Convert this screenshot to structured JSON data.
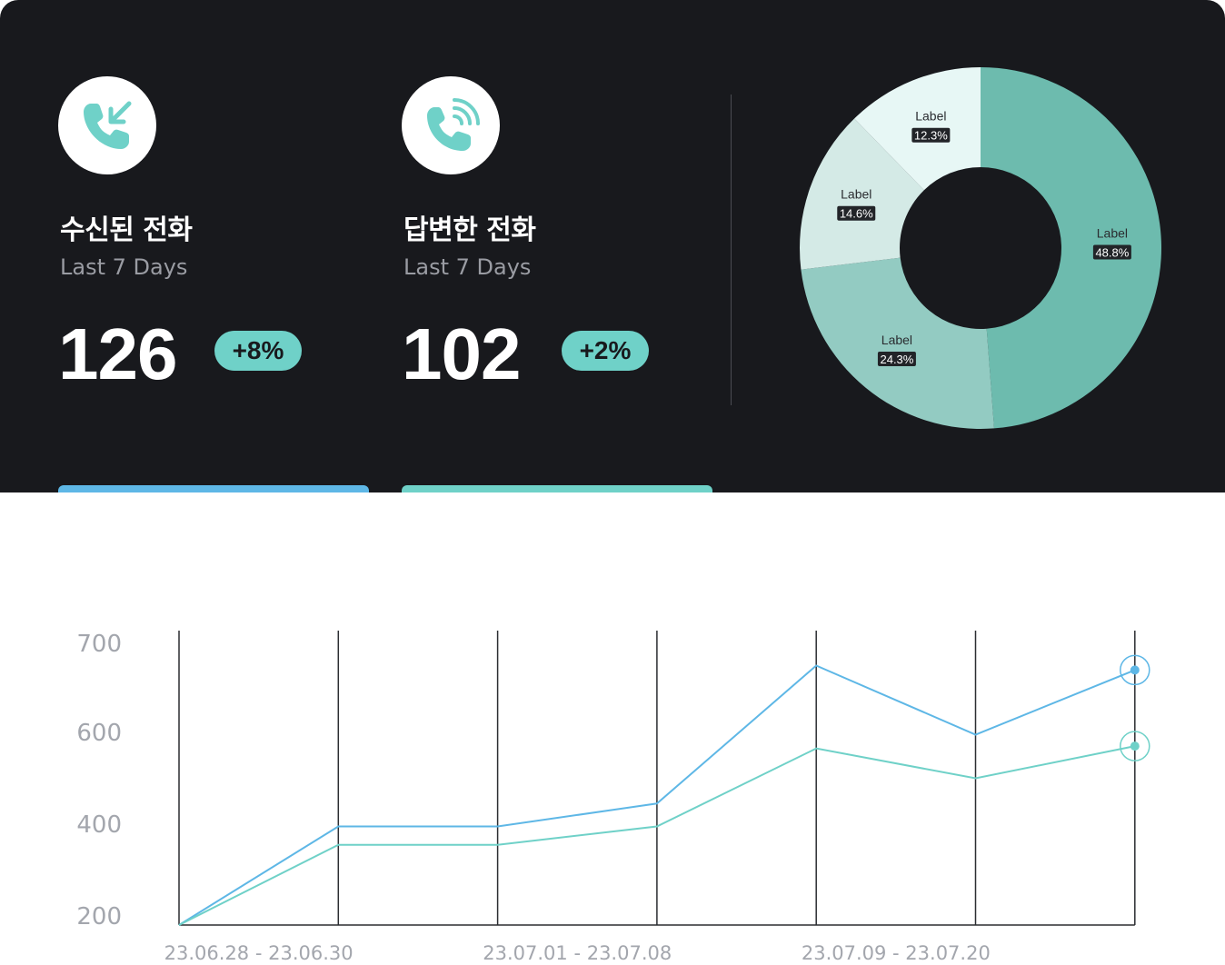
{
  "cards": [
    {
      "icon": "incoming-call-icon",
      "title": "수신된 전화",
      "subtitle": "Last 7 Days",
      "value": "126",
      "change": "+8%",
      "accent": "#5eb7e6"
    },
    {
      "icon": "ringing-call-icon",
      "title": "답변한 전화",
      "subtitle": "Last 7 Days",
      "value": "102",
      "change": "+2%",
      "accent": "#6fd1c8"
    }
  ],
  "colors": {
    "panel_bg": "#18191d",
    "teal": "#6fd1c8",
    "blue": "#5eb7e6",
    "gray_text": "#9a9ca3"
  },
  "chart_data": [
    {
      "type": "pie",
      "donut": true,
      "slices": [
        {
          "label": "Label",
          "value": 48.8,
          "value_label": "48.8%",
          "color": "#6dbbae"
        },
        {
          "label": "Label",
          "value": 24.3,
          "value_label": "24.3%",
          "color": "#93cbc2"
        },
        {
          "label": "Label",
          "value": 14.6,
          "value_label": "14.6%",
          "color": "#d4eae6"
        },
        {
          "label": "Label",
          "value": 12.3,
          "value_label": "12.3%",
          "color": "#e7f7f5"
        }
      ]
    },
    {
      "type": "line",
      "x": [
        0,
        1,
        2,
        3,
        4,
        5,
        6
      ],
      "x_tick_labels": [
        {
          "at": 0.5,
          "text": "23.06.28 - 23.06.30"
        },
        {
          "at": 2.5,
          "text": "23.07.01 - 23.07.08"
        },
        {
          "at": 4.5,
          "text": "23.07.09 - 23.07.20"
        }
      ],
      "y_ticks": [
        "700",
        "600",
        "400",
        "200"
      ],
      "series": [
        {
          "color": "#5eb7e6",
          "values": [
            190,
            395,
            395,
            445,
            675,
            595,
            670
          ]
        },
        {
          "color": "#6fd1c8",
          "values": [
            190,
            355,
            355,
            395,
            565,
            500,
            570
          ]
        }
      ],
      "grid": "vertical",
      "end_markers": true
    }
  ]
}
